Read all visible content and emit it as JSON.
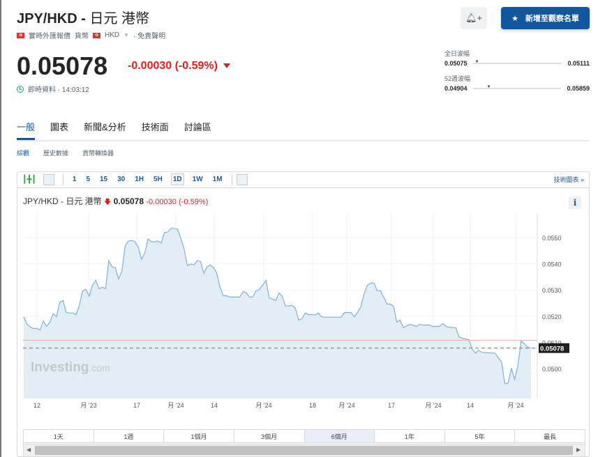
{
  "header": {
    "symbol": "JPY/HKD - ",
    "name": "日元 港幣",
    "source": "實時外匯報價",
    "type": "貨幣",
    "currency": "HKD",
    "disclaimer": "· 免責聲明",
    "price": "0.05078",
    "change": "-0.00030 (-0.59%)",
    "time_label": "即時資料 · 14:03:12",
    "watchlist_button": "新增至觀察名單",
    "flag_color": "#e5312b",
    "accent": "#1256a0",
    "down_color": "#e0201b"
  },
  "ranges": {
    "day": {
      "label": "全日波幅",
      "low": "0.05075",
      "high": "0.05111"
    },
    "week52": {
      "label": "52週波幅",
      "low": "0.04904",
      "high": "0.05859"
    }
  },
  "tabs": [
    "一般",
    "圖表",
    "新聞&分析",
    "技術面",
    "討論區"
  ],
  "subtabs": [
    "綜觀",
    "歷史數據",
    "貨幣轉換器"
  ],
  "toolbar": {
    "intervals": [
      "1",
      "5",
      "15",
      "30",
      "1H",
      "5H",
      "1D",
      "1W",
      "1M"
    ],
    "selected": "1D",
    "tech_chart": "技術圖表 »"
  },
  "chart_header": {
    "name": "JPY/HKD - 日元 港幣",
    "price": "0.05078",
    "change": "-0.00030",
    "pct": "(-0.59%)"
  },
  "watermark": "Investing.com",
  "periods": [
    "1天",
    "1週",
    "1個月",
    "3個月",
    "6個月",
    "1年",
    "5年",
    "最長"
  ],
  "selected_period": "6個月",
  "chart_data": {
    "type": "area",
    "ylim": [
      0.0494,
      0.0557
    ],
    "y_ticks": [
      "0.0550",
      "0.0540",
      "0.0530",
      "0.0520",
      "0.0510",
      "0.0500"
    ],
    "x_ticks": [
      "12",
      "月 '23",
      "17",
      "月 '24",
      "14",
      "月 '24",
      "18",
      "月 '24",
      "17",
      "月 '24",
      "14",
      "月 '24"
    ],
    "last_label": "0.05078",
    "last_value": 0.05078,
    "reference_line": 0.05108,
    "values": [
      0.05198,
      0.0517,
      0.05158,
      0.05153,
      0.05153,
      0.05148,
      0.05182,
      0.05161,
      0.05177,
      0.05209,
      0.05198,
      0.05252,
      0.0526,
      0.05214,
      0.05212,
      0.05212,
      0.05206,
      0.05241,
      0.05297,
      0.05302,
      0.05276,
      0.05318,
      0.05337,
      0.05305,
      0.0531,
      0.05305,
      0.05412,
      0.05388,
      0.05385,
      0.05342,
      0.05372,
      0.05468,
      0.05487,
      0.05489,
      0.05484,
      0.05463,
      0.05417,
      0.05441,
      0.05495,
      0.05484,
      0.05484,
      0.05487,
      0.05479,
      0.05519,
      0.05521,
      0.05535,
      0.05535,
      0.05532,
      0.05497,
      0.05457,
      0.05393,
      0.05399,
      0.05396,
      0.05412,
      0.05409,
      0.05364,
      0.05388,
      0.05396,
      0.05385,
      0.05364,
      0.0531,
      0.05278,
      0.05278,
      0.05273,
      0.05273,
      0.05273,
      0.05273,
      0.05294,
      0.05289,
      0.05273,
      0.05273,
      0.05297,
      0.05302,
      0.05318,
      0.05337,
      0.0527,
      0.05265,
      0.0526,
      0.05289,
      0.05276,
      0.05238,
      0.0524,
      0.05241,
      0.0523,
      0.05185,
      0.0519,
      0.05212,
      0.05206,
      0.05206,
      0.05204,
      0.05212,
      0.05198,
      0.05196,
      0.05196,
      0.05196,
      0.05196,
      0.05196,
      0.05196,
      0.05214,
      0.05214,
      0.05214,
      0.05198,
      0.05214,
      0.05236,
      0.05286,
      0.05318,
      0.05326,
      0.05326,
      0.05297,
      0.05297,
      0.05273,
      0.05246,
      0.05246,
      0.05238,
      0.05177,
      0.05185,
      0.05156,
      0.05163,
      0.05169,
      0.05165,
      0.05161,
      0.05169,
      0.05166,
      0.05166,
      0.05166,
      0.05161,
      0.05161,
      0.05161,
      0.05172,
      0.05161,
      0.05158,
      0.05156,
      0.05156,
      0.05121,
      0.05116,
      0.05113,
      0.0511,
      0.05075,
      0.05059,
      0.0507,
      0.05062,
      0.05061,
      0.0506,
      0.05059,
      0.05059,
      0.05041,
      0.05025,
      0.04942,
      0.04945,
      0.05001,
      0.04958,
      0.05011,
      0.05105,
      0.05094,
      0.05081,
      0.05078
    ]
  }
}
